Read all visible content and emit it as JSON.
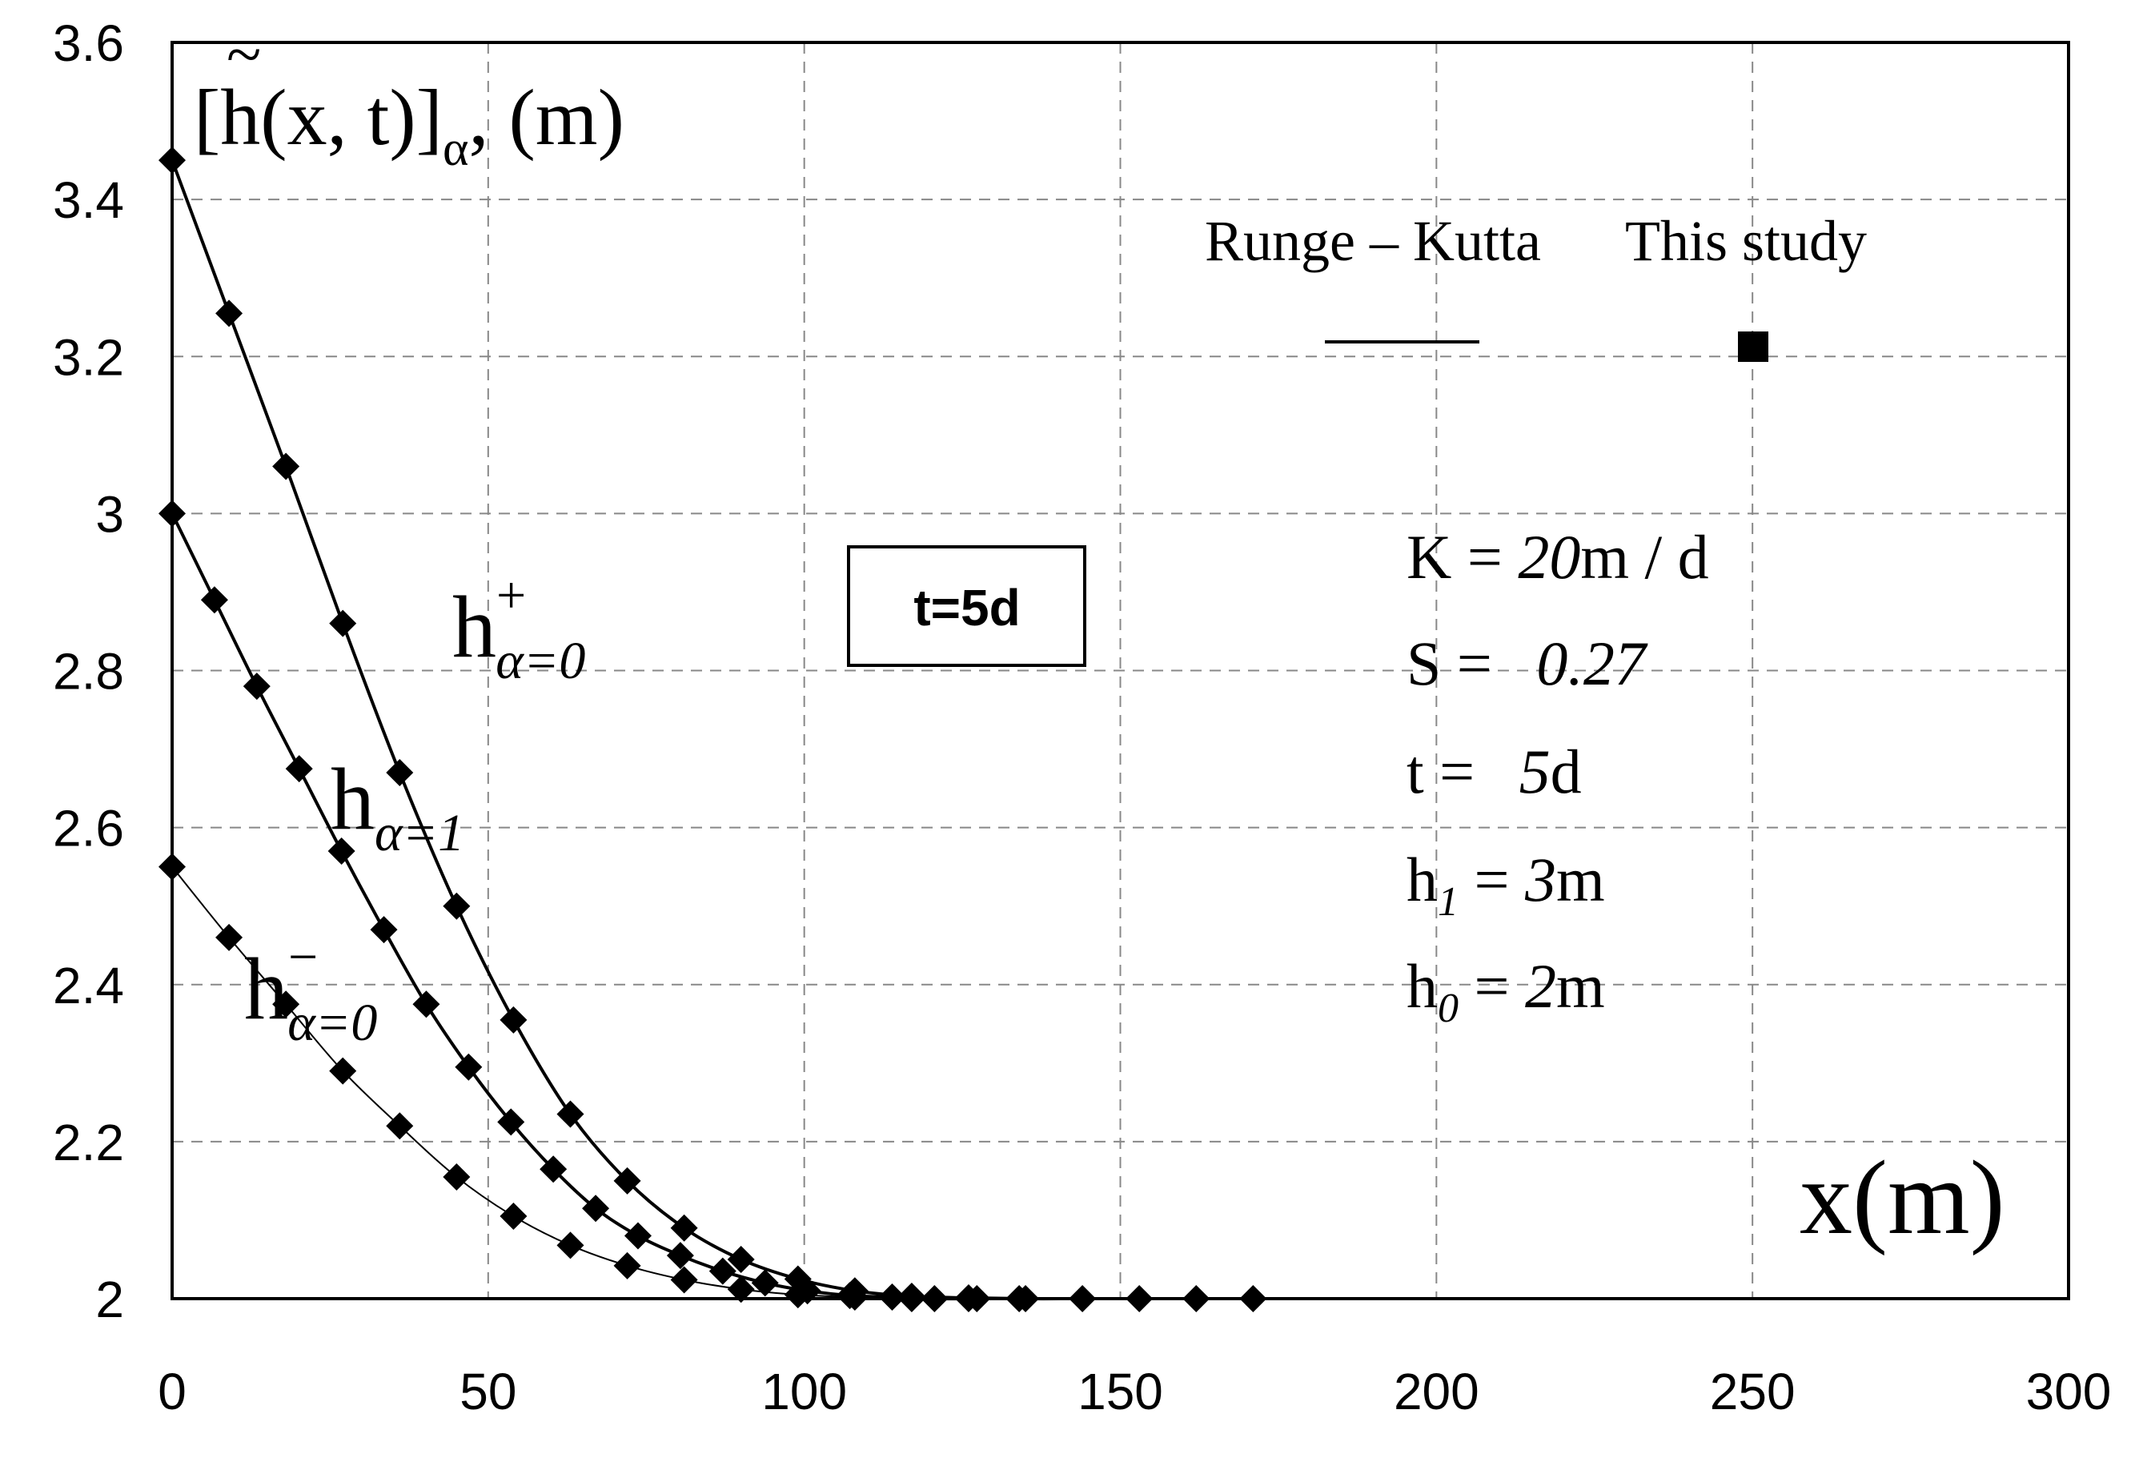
{
  "chart_data": {
    "type": "line",
    "title": "",
    "xlabel": "x(m)",
    "ylabel": {
      "main": "[h(x, t)]",
      "tilde": "~",
      "sub": "α",
      "unit": ", (m)"
    },
    "xlim": [
      0,
      300
    ],
    "ylim": [
      2,
      3.6
    ],
    "xticks": [
      "0",
      "50",
      "100",
      "150",
      "200",
      "250",
      "300"
    ],
    "yticks": [
      "2",
      "2.2",
      "2.4",
      "2.6",
      "2.8",
      "3",
      "3.2",
      "3.4",
      "3.6"
    ],
    "grid": true,
    "time_box": "t=5d",
    "legend": {
      "position": "top-right",
      "line_label": "Runge – Kutta",
      "marker_label": "This study"
    },
    "params": [
      {
        "left": "K = ",
        "val": "20",
        "right": "m / d"
      },
      {
        "left": "S = ",
        "val": "0.27",
        "right": ""
      },
      {
        "left": "t = ",
        "val": "5",
        "right": "d"
      },
      {
        "left": "h",
        "sub": "1",
        "mid": " = ",
        "val": "3",
        "right": "m"
      },
      {
        "left": "h",
        "sub": "0",
        "mid": " = ",
        "val": "2",
        "right": "m"
      }
    ],
    "curve_labels": [
      {
        "base": "h",
        "sup": "+",
        "sub": "α=0"
      },
      {
        "base": "h",
        "sup": "",
        "sub": "α=1"
      },
      {
        "base": "h",
        "sup": "−",
        "sub": "α=0"
      }
    ],
    "series": [
      {
        "name": "h+ α=0",
        "line": [
          [
            0,
            3.45
          ],
          [
            9,
            3.255
          ],
          [
            18,
            3.06
          ],
          [
            27,
            2.86
          ],
          [
            36,
            2.67
          ],
          [
            45,
            2.5
          ],
          [
            54,
            2.355
          ],
          [
            63,
            2.235
          ],
          [
            72,
            2.15
          ],
          [
            81,
            2.09
          ],
          [
            90,
            2.05
          ],
          [
            99,
            2.025
          ],
          [
            108,
            2.01
          ],
          [
            117,
            2.003
          ],
          [
            126,
            2.001
          ],
          [
            135,
            2.0
          ],
          [
            144,
            2.0
          ],
          [
            153,
            2.0
          ],
          [
            162,
            2.0
          ],
          [
            171,
            2.0
          ]
        ],
        "markers": [
          [
            0,
            3.45
          ],
          [
            9,
            3.255
          ],
          [
            18,
            3.06
          ],
          [
            27,
            2.86
          ],
          [
            36,
            2.67
          ],
          [
            45,
            2.5
          ],
          [
            54,
            2.355
          ],
          [
            63,
            2.235
          ],
          [
            72,
            2.15
          ],
          [
            81,
            2.09
          ],
          [
            90,
            2.05
          ],
          [
            99,
            2.025
          ],
          [
            108,
            2.01
          ],
          [
            117,
            2.003
          ],
          [
            126,
            2.001
          ],
          [
            135,
            2.0
          ],
          [
            144,
            2.0
          ],
          [
            153,
            2.0
          ],
          [
            162,
            2.0
          ],
          [
            171,
            2.0
          ]
        ]
      },
      {
        "name": "h α=1",
        "line": [
          [
            0,
            3.0
          ],
          [
            6.7,
            2.89
          ],
          [
            13.4,
            2.78
          ],
          [
            20.1,
            2.675
          ],
          [
            26.8,
            2.57
          ],
          [
            33.5,
            2.47
          ],
          [
            40.2,
            2.375
          ],
          [
            46.9,
            2.295
          ],
          [
            53.6,
            2.225
          ],
          [
            60.3,
            2.165
          ],
          [
            67,
            2.115
          ],
          [
            73.7,
            2.08
          ],
          [
            80.4,
            2.055
          ],
          [
            87.1,
            2.035
          ],
          [
            93.8,
            2.02
          ],
          [
            100.5,
            2.01
          ],
          [
            107.2,
            2.004
          ],
          [
            113.9,
            2.002
          ],
          [
            120.6,
            2.0
          ],
          [
            127.3,
            2.0
          ],
          [
            134,
            2.0
          ]
        ],
        "markers": [
          [
            0,
            3.0
          ],
          [
            6.7,
            2.89
          ],
          [
            13.4,
            2.78
          ],
          [
            20.1,
            2.675
          ],
          [
            26.8,
            2.57
          ],
          [
            33.5,
            2.47
          ],
          [
            40.2,
            2.375
          ],
          [
            46.9,
            2.295
          ],
          [
            53.6,
            2.225
          ],
          [
            60.3,
            2.165
          ],
          [
            67,
            2.115
          ],
          [
            73.7,
            2.08
          ],
          [
            80.4,
            2.055
          ],
          [
            87.1,
            2.035
          ],
          [
            93.8,
            2.02
          ],
          [
            100.5,
            2.01
          ],
          [
            107.2,
            2.004
          ],
          [
            113.9,
            2.002
          ],
          [
            120.6,
            2.0
          ],
          [
            127.3,
            2.0
          ],
          [
            134,
            2.0
          ]
        ]
      },
      {
        "name": "h− α=0",
        "line": [
          [
            0,
            2.55
          ],
          [
            9,
            2.46
          ],
          [
            18,
            2.375
          ],
          [
            27,
            2.29
          ],
          [
            36,
            2.22
          ],
          [
            45,
            2.155
          ],
          [
            54,
            2.105
          ],
          [
            63,
            2.068
          ],
          [
            72,
            2.042
          ],
          [
            81,
            2.024
          ],
          [
            90,
            2.012
          ],
          [
            99,
            2.005
          ],
          [
            108,
            2.002
          ],
          [
            117,
            2.0
          ],
          [
            126,
            2.0
          ]
        ],
        "markers": [
          [
            0,
            2.55
          ],
          [
            9,
            2.46
          ],
          [
            18,
            2.375
          ],
          [
            27,
            2.29
          ],
          [
            36,
            2.22
          ],
          [
            45,
            2.155
          ],
          [
            54,
            2.105
          ],
          [
            63,
            2.068
          ],
          [
            72,
            2.042
          ],
          [
            81,
            2.024
          ],
          [
            90,
            2.012
          ],
          [
            99,
            2.005
          ],
          [
            108,
            2.002
          ],
          [
            117,
            2.0
          ],
          [
            126,
            2.0
          ]
        ]
      }
    ]
  }
}
